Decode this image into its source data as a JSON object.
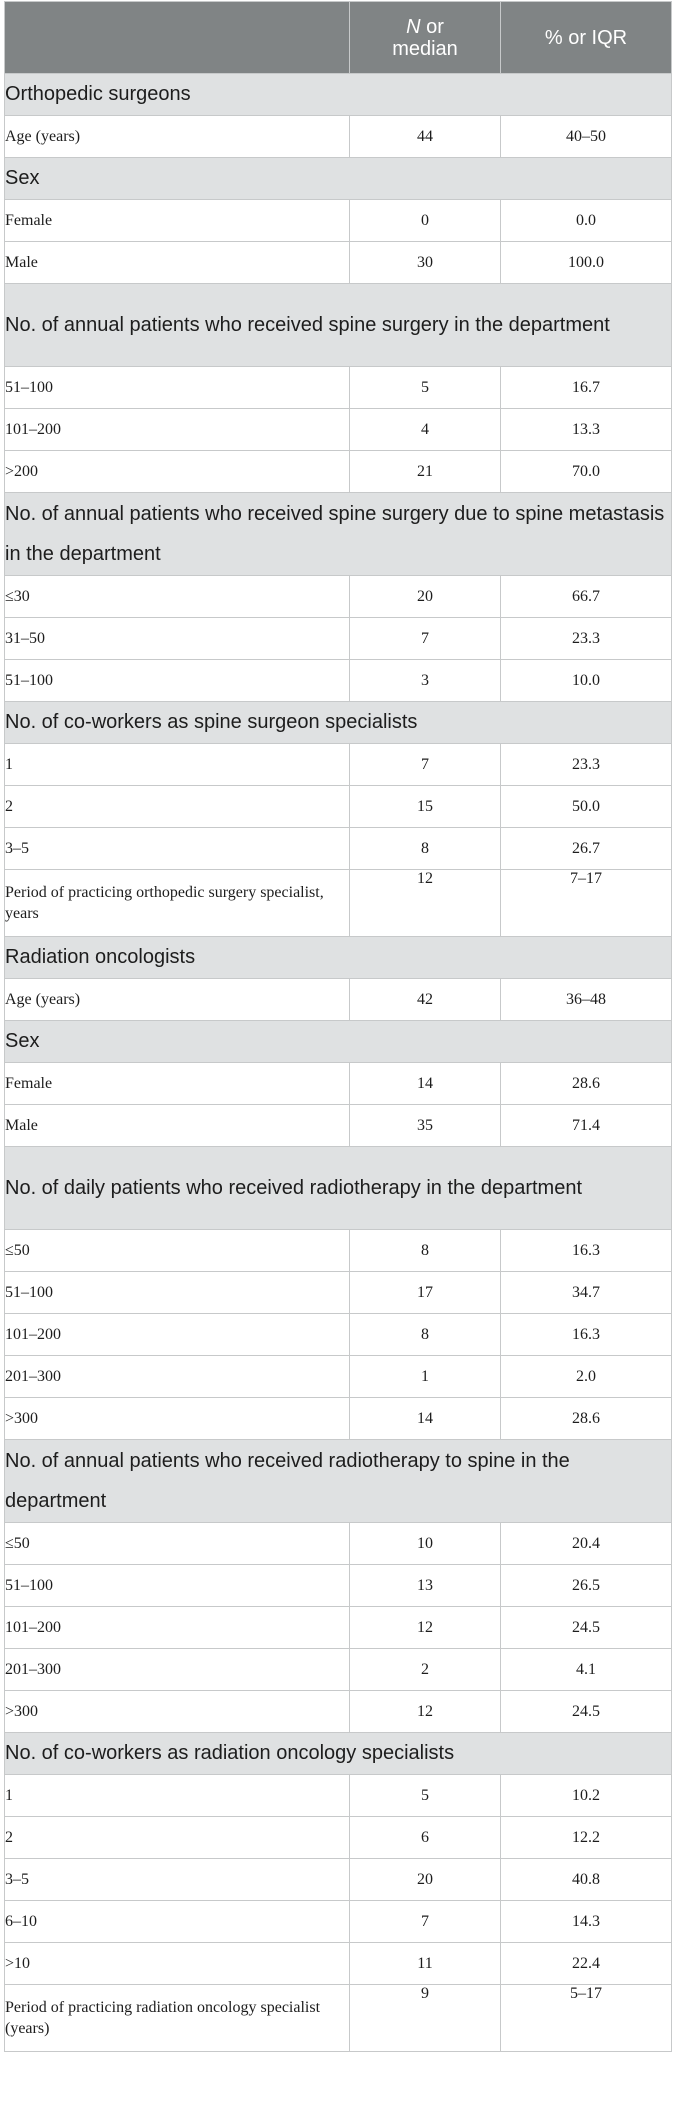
{
  "header": {
    "col1": "",
    "col2_italic": "N",
    "col2_rest": " or",
    "col2_line2": "median",
    "col3": "% or IQR"
  },
  "rows": [
    {
      "type": "section",
      "label": "Orthopedic surgeons"
    },
    {
      "type": "data",
      "label": "Age (years)",
      "n": "44",
      "pct": "40–50"
    },
    {
      "type": "section",
      "label": "Sex"
    },
    {
      "type": "data",
      "label": "Female",
      "n": "0",
      "pct": "0.0"
    },
    {
      "type": "data",
      "label": "Male",
      "n": "30",
      "pct": "100.0"
    },
    {
      "type": "section",
      "label": "No. of annual patients who received spine surgery in the department",
      "tall": true
    },
    {
      "type": "data",
      "label": "51–100",
      "n": "5",
      "pct": "16.7"
    },
    {
      "type": "data",
      "label": "101–200",
      "n": "4",
      "pct": "13.3"
    },
    {
      "type": "data",
      "label": ">200",
      "n": "21",
      "pct": "70.0"
    },
    {
      "type": "section",
      "label": "No. of annual patients who received spine surgery due to spine metastasis in the department",
      "tall": true
    },
    {
      "type": "data",
      "label": "≤30",
      "n": "20",
      "pct": "66.7"
    },
    {
      "type": "data",
      "label": "31–50",
      "n": "7",
      "pct": "23.3"
    },
    {
      "type": "data",
      "label": "51–100",
      "n": "3",
      "pct": "10.0"
    },
    {
      "type": "section",
      "label": "No. of co-workers as spine surgeon specialists"
    },
    {
      "type": "data",
      "label": "1",
      "n": "7",
      "pct": "23.3"
    },
    {
      "type": "data",
      "label": "2",
      "n": "15",
      "pct": "50.0"
    },
    {
      "type": "data",
      "label": "3–5",
      "n": "8",
      "pct": "26.7"
    },
    {
      "type": "data",
      "label": "Period of practicing orthopedic surgery specialist, years",
      "n": "12",
      "pct": "7–17",
      "tall": true
    },
    {
      "type": "section",
      "label": "Radiation oncologists"
    },
    {
      "type": "data",
      "label": "Age (years)",
      "n": "42",
      "pct": "36–48"
    },
    {
      "type": "section",
      "label": "Sex"
    },
    {
      "type": "data",
      "label": "Female",
      "n": "14",
      "pct": "28.6"
    },
    {
      "type": "data",
      "label": "Male",
      "n": "35",
      "pct": "71.4"
    },
    {
      "type": "section",
      "label": "No. of daily patients who received radiotherapy in the department",
      "tall": true
    },
    {
      "type": "data",
      "label": "≤50",
      "n": "8",
      "pct": "16.3"
    },
    {
      "type": "data",
      "label": "51–100",
      "n": "17",
      "pct": "34.7"
    },
    {
      "type": "data",
      "label": "101–200",
      "n": "8",
      "pct": "16.3"
    },
    {
      "type": "data",
      "label": "201–300",
      "n": "1",
      "pct": "2.0"
    },
    {
      "type": "data",
      "label": ">300",
      "n": "14",
      "pct": "28.6"
    },
    {
      "type": "section",
      "label": "No. of annual patients who received radiotherapy to spine in the department",
      "tall": true
    },
    {
      "type": "data",
      "label": "≤50",
      "n": "10",
      "pct": "20.4"
    },
    {
      "type": "data",
      "label": "51–100",
      "n": "13",
      "pct": "26.5"
    },
    {
      "type": "data",
      "label": "101–200",
      "n": "12",
      "pct": "24.5"
    },
    {
      "type": "data",
      "label": "201–300",
      "n": "2",
      "pct": "4.1"
    },
    {
      "type": "data",
      "label": ">300",
      "n": "12",
      "pct": "24.5"
    },
    {
      "type": "section",
      "label": "No. of co-workers as radiation oncology specialists"
    },
    {
      "type": "data",
      "label": "1",
      "n": "5",
      "pct": "10.2"
    },
    {
      "type": "data",
      "label": "2",
      "n": "6",
      "pct": "12.2"
    },
    {
      "type": "data",
      "label": "3–5",
      "n": "20",
      "pct": "40.8"
    },
    {
      "type": "data",
      "label": "6–10",
      "n": "7",
      "pct": "14.3"
    },
    {
      "type": "data",
      "label": ">10",
      "n": "11",
      "pct": "22.4"
    },
    {
      "type": "data",
      "label": "Period of practicing radiation oncology specialist (years)",
      "n": "9",
      "pct": "5–17",
      "tall": true
    }
  ]
}
